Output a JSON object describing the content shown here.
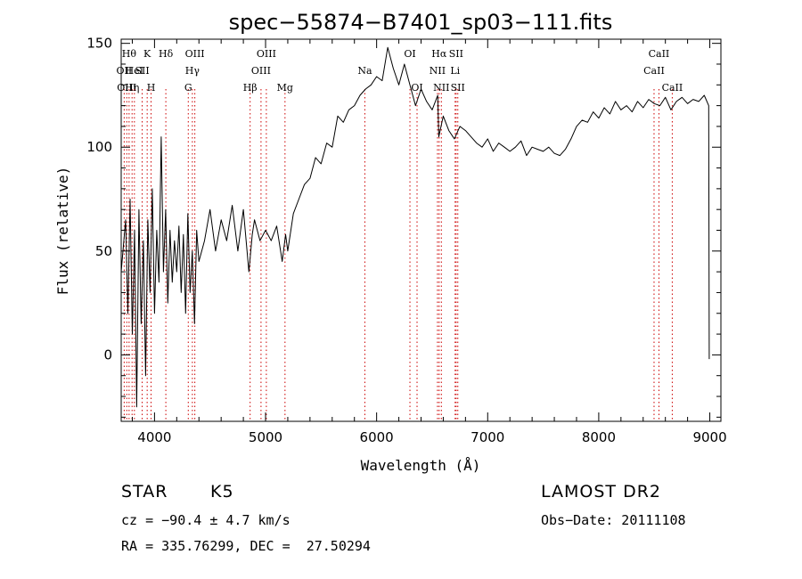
{
  "chart_data": {
    "type": "line",
    "title": "spec−55874−B7401_sp03−111.fits",
    "xlabel": "Wavelength (Å)",
    "ylabel": "Flux (relative)",
    "xlim": [
      3700,
      9100
    ],
    "ylim": [
      -32,
      152
    ],
    "x_ticks": [
      4000,
      5000,
      6000,
      7000,
      8000,
      9000
    ],
    "y_ticks": [
      0,
      50,
      100,
      150
    ],
    "grid": false,
    "line_color": "#000000",
    "marker_color": "#cc0000",
    "series": [
      {
        "x": [
          3700,
          3740,
          3760,
          3780,
          3800,
          3820,
          3840,
          3860,
          3880,
          3900,
          3920,
          3940,
          3960,
          3980,
          4000,
          4020,
          4040,
          4060,
          4080,
          4100,
          4120,
          4140,
          4160,
          4180,
          4200,
          4220,
          4240,
          4260,
          4280,
          4300,
          4320,
          4340,
          4360,
          4380,
          4400,
          4450,
          4500,
          4550,
          4600,
          4650,
          4700,
          4750,
          4800,
          4850,
          4880,
          4900,
          4950,
          5000,
          5050,
          5100,
          5150,
          5180,
          5200,
          5250,
          5300,
          5350,
          5400,
          5450,
          5500,
          5550,
          5600,
          5650,
          5700,
          5750,
          5800,
          5850,
          5900,
          5950,
          6000,
          6050,
          6100,
          6150,
          6200,
          6250,
          6300,
          6350,
          6400,
          6450,
          6500,
          6550,
          6560,
          6600,
          6650,
          6700,
          6750,
          6800,
          6850,
          6900,
          6950,
          7000,
          7050,
          7100,
          7150,
          7200,
          7250,
          7300,
          7350,
          7400,
          7450,
          7500,
          7550,
          7600,
          7650,
          7700,
          7750,
          7800,
          7850,
          7900,
          7950,
          8000,
          8050,
          8100,
          8150,
          8200,
          8250,
          8300,
          8350,
          8400,
          8450,
          8500,
          8550,
          8600,
          8650,
          8700,
          8750,
          8800,
          8850,
          8900,
          8950,
          8990,
          8995
        ],
        "y": [
          40,
          65,
          20,
          75,
          10,
          60,
          -25,
          70,
          15,
          55,
          -10,
          65,
          30,
          80,
          20,
          60,
          35,
          105,
          40,
          70,
          25,
          60,
          35,
          55,
          40,
          62,
          30,
          58,
          20,
          68,
          30,
          50,
          15,
          60,
          45,
          55,
          70,
          50,
          65,
          55,
          72,
          50,
          70,
          40,
          58,
          65,
          55,
          60,
          55,
          62,
          45,
          58,
          50,
          68,
          75,
          82,
          85,
          95,
          92,
          102,
          100,
          115,
          112,
          118,
          120,
          125,
          128,
          130,
          134,
          132,
          148,
          138,
          130,
          140,
          130,
          120,
          128,
          122,
          118,
          125,
          105,
          115,
          108,
          104,
          110,
          108,
          105,
          102,
          100,
          104,
          98,
          102,
          100,
          98,
          100,
          103,
          96,
          100,
          99,
          98,
          100,
          97,
          96,
          99,
          104,
          110,
          113,
          112,
          117,
          114,
          119,
          116,
          122,
          118,
          120,
          117,
          122,
          119,
          123,
          121,
          120,
          124,
          118,
          122,
          124,
          121,
          123,
          122,
          125,
          120,
          -2
        ]
      }
    ],
    "markers": [
      {
        "wl": 3727,
        "label": "OII",
        "row": 1
      },
      {
        "wl": 3750,
        "label": "OIII",
        "row": 2
      },
      {
        "wl": 3771,
        "label": "Hθ",
        "row": 0
      },
      {
        "wl": 3798,
        "label": "Hη",
        "row": 2
      },
      {
        "wl": 3819,
        "label": "HeI",
        "row": 1
      },
      {
        "wl": 3889,
        "label": "SII",
        "row": 1
      },
      {
        "wl": 3934,
        "label": "K",
        "row": 0
      },
      {
        "wl": 3969,
        "label": "H",
        "row": 2
      },
      {
        "wl": 4102,
        "label": "Hδ",
        "row": 0
      },
      {
        "wl": 4304,
        "label": "G",
        "row": 2
      },
      {
        "wl": 4341,
        "label": "Hγ",
        "row": 1
      },
      {
        "wl": 4363,
        "label": "OIII",
        "row": 0
      },
      {
        "wl": 4861,
        "label": "Hβ",
        "row": 2
      },
      {
        "wl": 4959,
        "label": "OIII",
        "row": 1
      },
      {
        "wl": 5007,
        "label": "OIII",
        "row": 0
      },
      {
        "wl": 5175,
        "label": "Mg",
        "row": 2
      },
      {
        "wl": 5894,
        "label": "Na",
        "row": 1
      },
      {
        "wl": 6300,
        "label": "OI",
        "row": 0
      },
      {
        "wl": 6364,
        "label": "OI",
        "row": 2
      },
      {
        "wl": 6548,
        "label": "NII",
        "row": 1
      },
      {
        "wl": 6563,
        "label": "Hα",
        "row": 0
      },
      {
        "wl": 6583,
        "label": "NII",
        "row": 2
      },
      {
        "wl": 6707,
        "label": "Li",
        "row": 1
      },
      {
        "wl": 6716,
        "label": "SII",
        "row": 0
      },
      {
        "wl": 6731,
        "label": "SII",
        "row": 2
      },
      {
        "wl": 8498,
        "label": "CaII",
        "row": 1
      },
      {
        "wl": 8542,
        "label": "CaII",
        "row": 0
      },
      {
        "wl": 8662,
        "label": "CaII",
        "row": 2
      }
    ]
  },
  "info": {
    "object_class": "STAR",
    "subclass": "K5",
    "survey": "LAMOST DR2",
    "cz_line": "cz = −90.4 ± 4.7 km/s",
    "obs_date_line": "Obs−Date: 20111108",
    "coords_line": "RA = 335.76299, DEC =  27.50294"
  }
}
